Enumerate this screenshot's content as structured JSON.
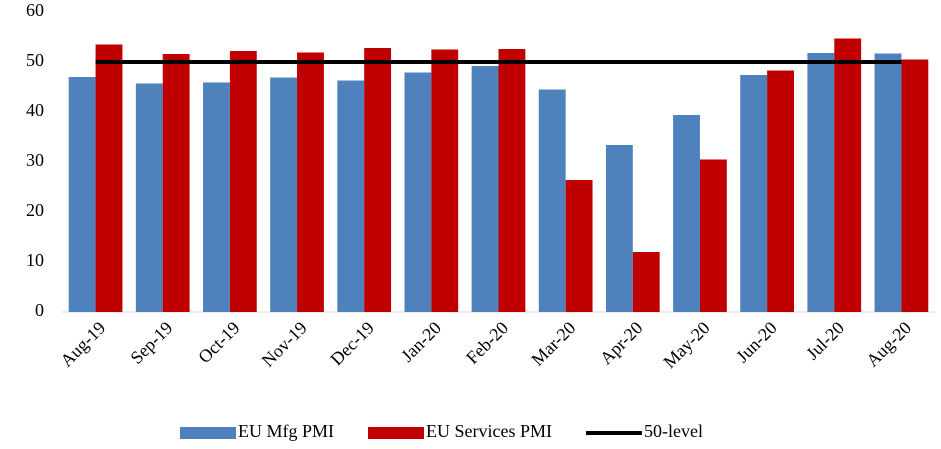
{
  "chart_data": {
    "type": "bar",
    "categories": [
      "Aug-19",
      "Sep-19",
      "Oct-19",
      "Nov-19",
      "Dec-19",
      "Jan-20",
      "Feb-20",
      "Mar-20",
      "Apr-20",
      "May-20",
      "Jun-20",
      "Jul-20",
      "Aug-20"
    ],
    "series": [
      {
        "name": "EU Mfg PMI",
        "color": "#4f81bd",
        "values": [
          47.0,
          45.7,
          45.9,
          46.9,
          46.3,
          47.9,
          49.2,
          44.5,
          33.4,
          39.4,
          47.4,
          51.8,
          51.7
        ]
      },
      {
        "name": "EU Services PMI",
        "color": "#c00000",
        "values": [
          53.5,
          51.6,
          52.2,
          51.9,
          52.8,
          52.5,
          52.6,
          26.4,
          12.0,
          30.5,
          48.3,
          54.7,
          50.5
        ]
      },
      {
        "name": "50-level",
        "type": "line",
        "color": "#000000",
        "values": [
          50,
          50,
          50,
          50,
          50,
          50,
          50,
          50,
          50,
          50,
          50,
          50,
          50
        ]
      }
    ],
    "ylim": [
      0,
      60
    ],
    "yticks": [
      0,
      10,
      20,
      30,
      40,
      50,
      60
    ],
    "legend": "bottom"
  }
}
